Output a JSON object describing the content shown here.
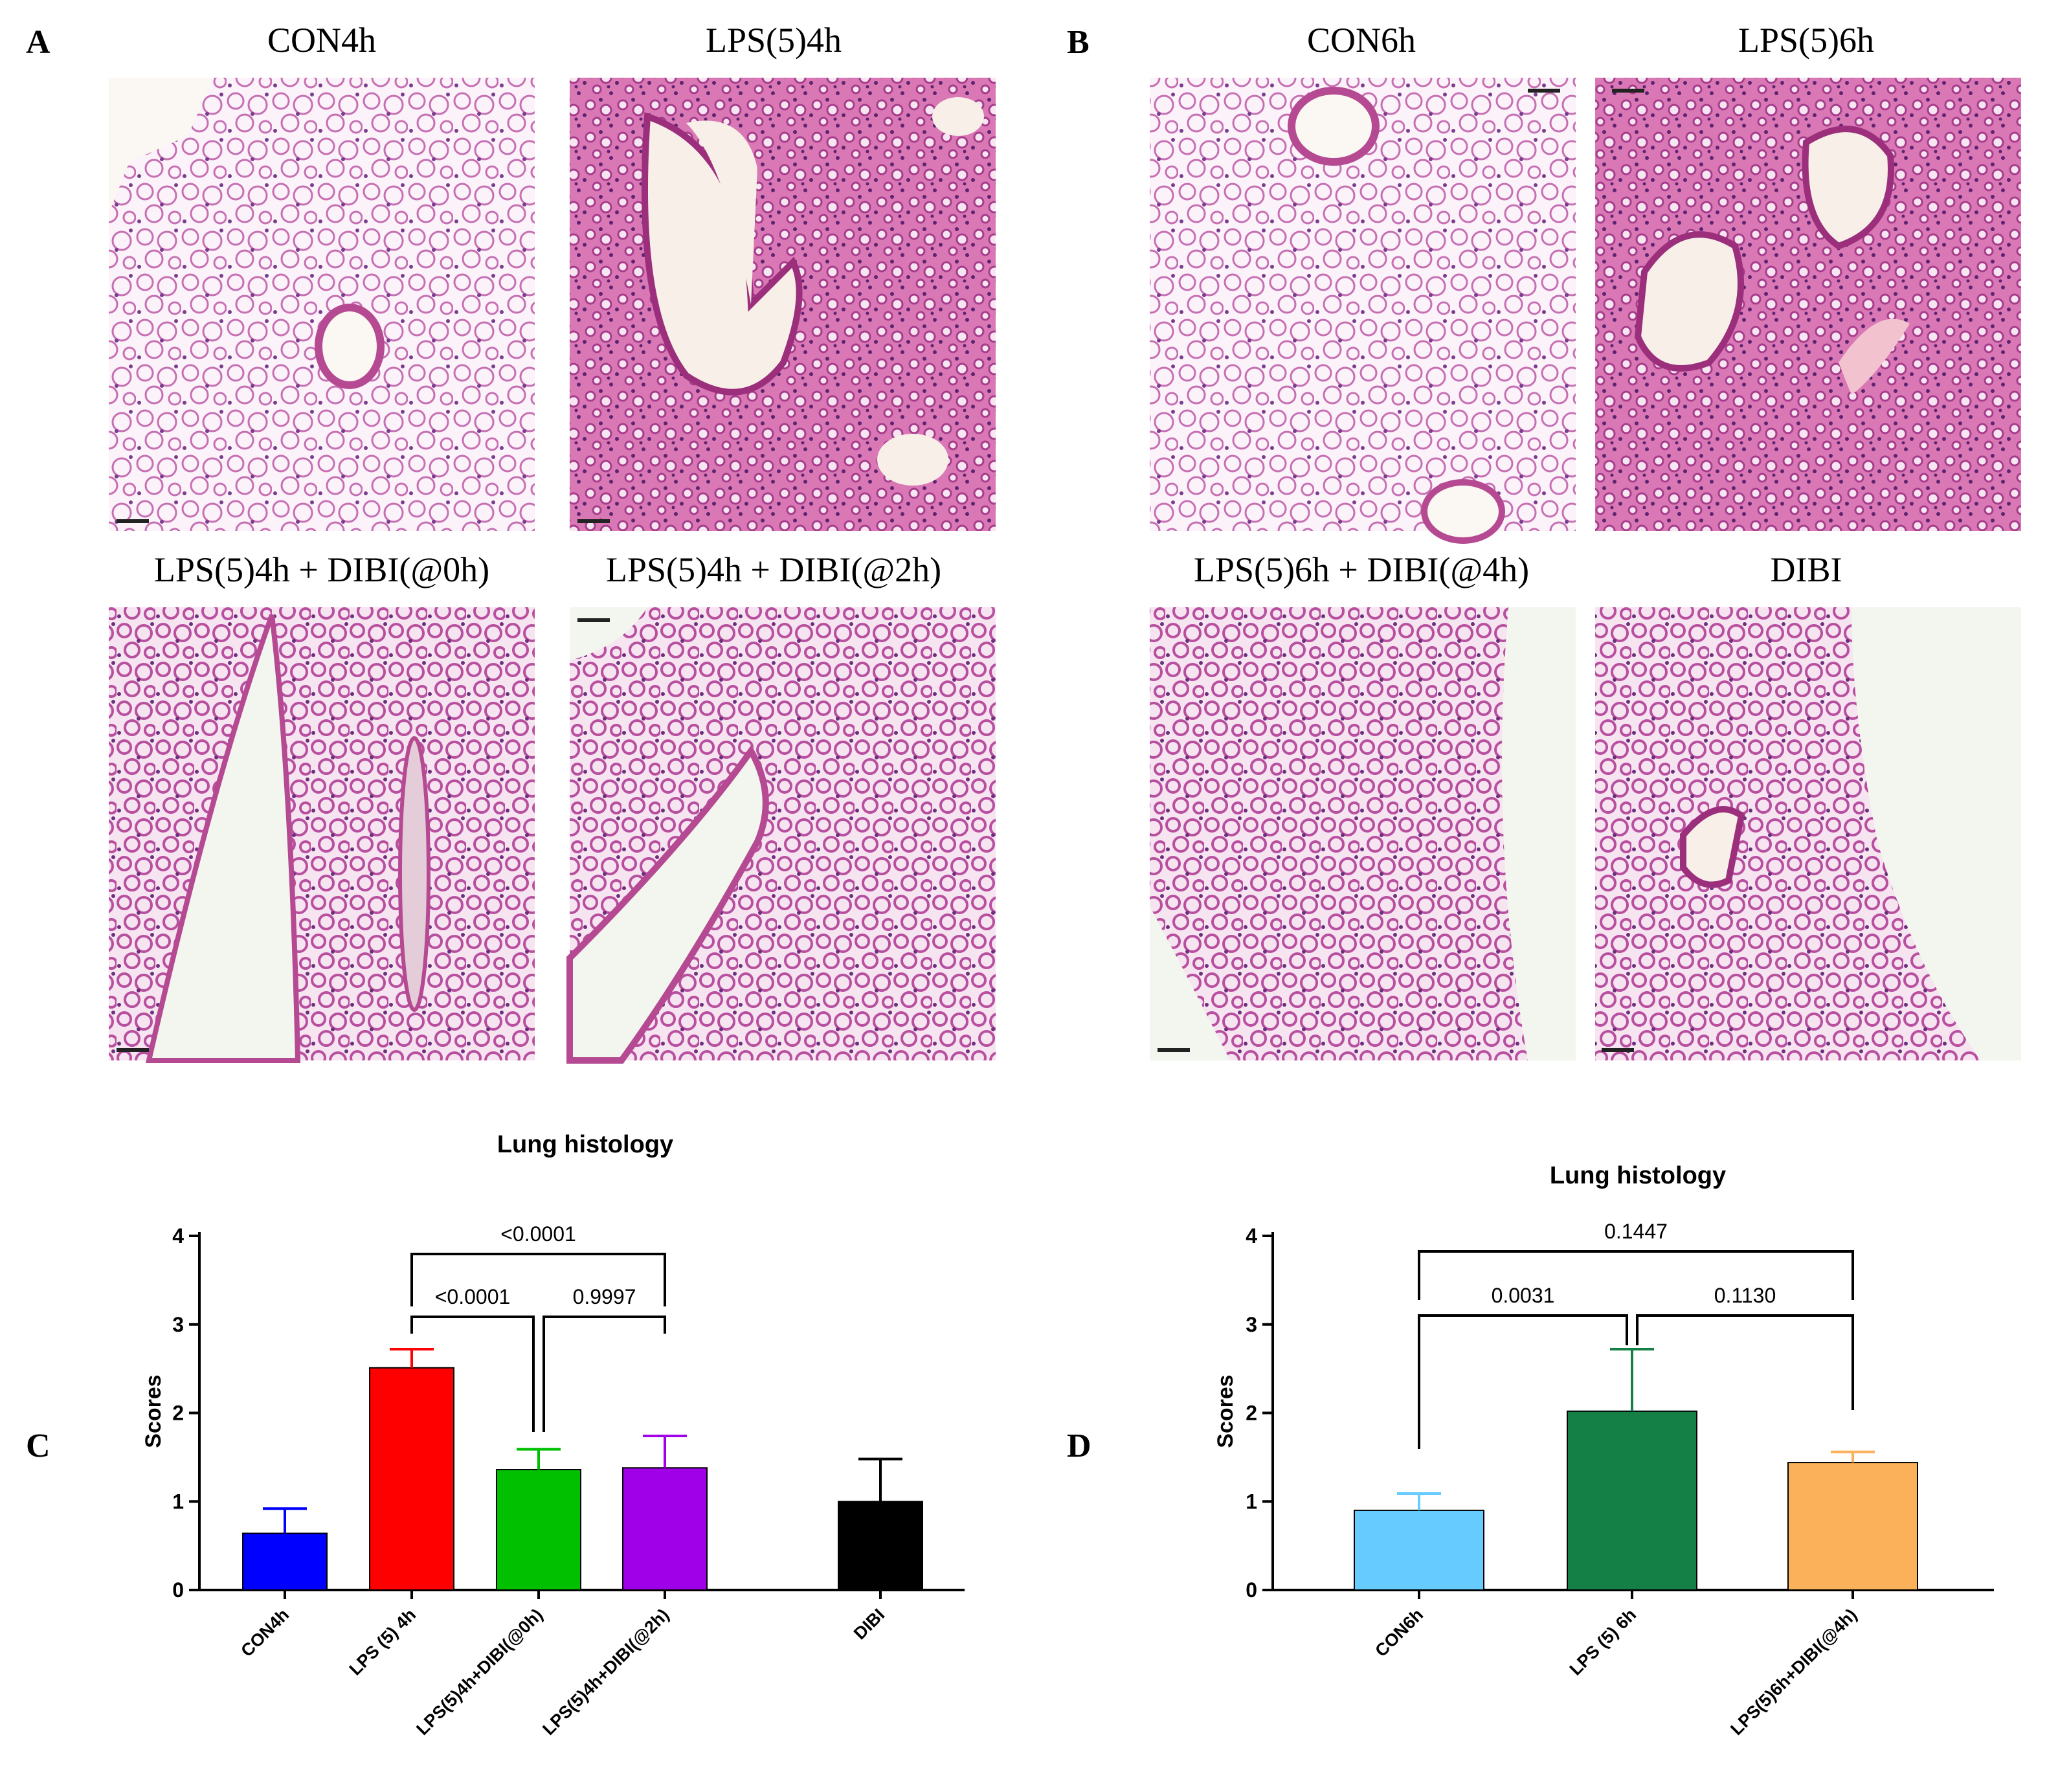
{
  "panels": {
    "A": {
      "letter": "A",
      "images": [
        {
          "title": "CON4h",
          "tint": "light"
        },
        {
          "title": "LPS(5)4h",
          "tint": "dense"
        },
        {
          "title": "LPS(5)4h + DIBI(@0h)",
          "tint": "medium"
        },
        {
          "title": "LPS(5)4h + DIBI(@2h)",
          "tint": "medium"
        }
      ]
    },
    "B": {
      "letter": "B",
      "images": [
        {
          "title": "CON6h",
          "tint": "light"
        },
        {
          "title": "LPS(5)6h",
          "tint": "dense"
        },
        {
          "title": "LPS(5)6h + DIBI(@4h)",
          "tint": "medium"
        },
        {
          "title": "DIBI",
          "tint": "medium"
        }
      ]
    },
    "C": {
      "letter": "C"
    },
    "D": {
      "letter": "D"
    }
  },
  "chart_data": [
    {
      "panel": "C",
      "type": "bar",
      "title": "Lung histology",
      "ylabel": "Scores",
      "ylim": [
        0,
        4
      ],
      "yticks": [
        0,
        1,
        2,
        3,
        4
      ],
      "categories": [
        "CON4h",
        "LPS (5) 4h",
        "LPS(5)4h+DIBI(@0h)",
        "LPS(5)4h+DIBI(@2h)",
        "DIBI"
      ],
      "values": [
        0.64,
        2.51,
        1.36,
        1.38,
        1.0
      ],
      "errors": [
        0.28,
        0.21,
        0.23,
        0.36,
        0.48
      ],
      "colors": [
        "#0000ff",
        "#ff0000",
        "#00c000",
        "#a000e8",
        "#000000"
      ],
      "comparisons": [
        {
          "from": 1,
          "to": 2,
          "label": "<0.0001"
        },
        {
          "from": 2,
          "to": 3,
          "label": "0.9997"
        },
        {
          "from": 1,
          "to": 3,
          "label": "<0.0001"
        }
      ]
    },
    {
      "panel": "D",
      "type": "bar",
      "title": "Lung histology",
      "ylabel": "Scores",
      "ylim": [
        0,
        4
      ],
      "yticks": [
        0,
        1,
        2,
        3,
        4
      ],
      "categories": [
        "CON6h",
        "LPS (5) 6h",
        "LPS(5)6h+DIBI(@4h)"
      ],
      "values": [
        0.9,
        2.02,
        1.44
      ],
      "errors": [
        0.19,
        0.7,
        0.12
      ],
      "colors": [
        "#66ccff",
        "#158046",
        "#fbb05a"
      ],
      "comparisons": [
        {
          "from": 0,
          "to": 1,
          "label": "0.0031"
        },
        {
          "from": 1,
          "to": 2,
          "label": "0.1130"
        },
        {
          "from": 0,
          "to": 2,
          "label": "0.1447"
        }
      ]
    }
  ]
}
